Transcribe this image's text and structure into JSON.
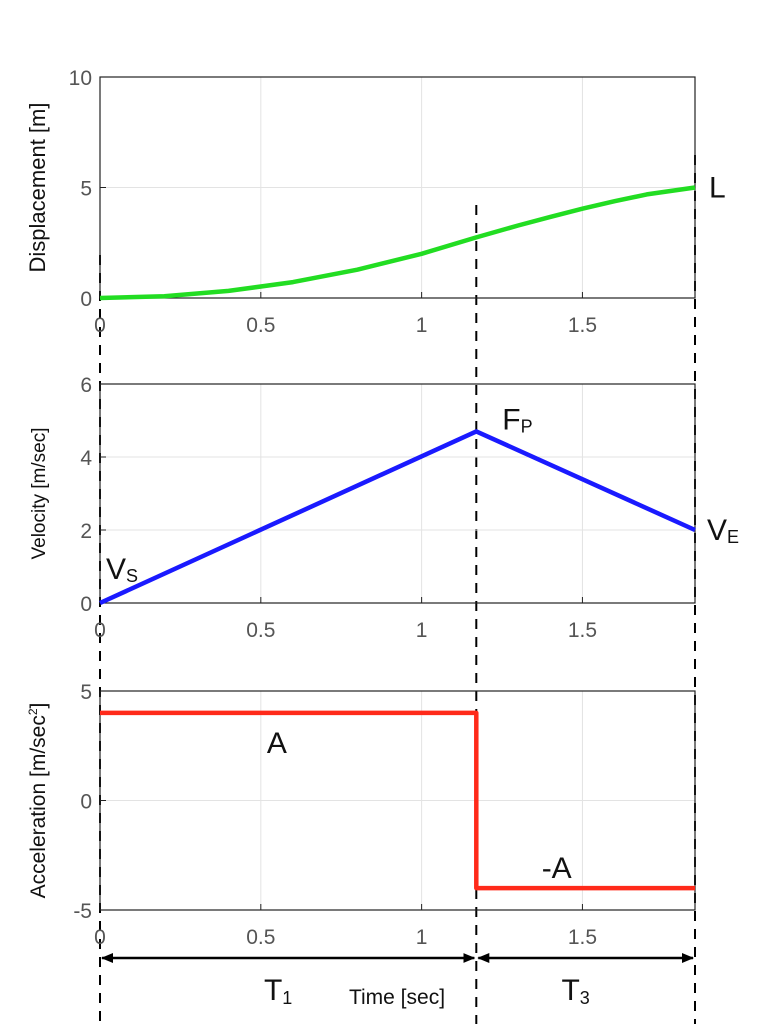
{
  "colors": {
    "displacement": "#22dd22",
    "velocity": "#1a1aff",
    "acceleration": "#ff2a1a",
    "grid": "#e3e3e3",
    "axis": "#222222"
  },
  "chart_data": [
    {
      "type": "line",
      "id": "displacement",
      "ylabel": "Displacement [m]",
      "xlim": [
        0,
        1.85
      ],
      "ylim": [
        0,
        10
      ],
      "x_ticks": [
        "0",
        "0.5",
        "1",
        "1.5"
      ],
      "x_tick_values": [
        0,
        0.5,
        1,
        1.5
      ],
      "y_ticks": [
        "0",
        "5",
        "10"
      ],
      "y_tick_values": [
        0,
        5,
        10
      ],
      "series": [
        {
          "name": "displacement",
          "x": [
            0,
            0.2,
            0.4,
            0.6,
            0.8,
            1.0,
            1.17,
            1.3,
            1.4,
            1.5,
            1.6,
            1.7,
            1.85
          ],
          "values": [
            0,
            0.08,
            0.32,
            0.72,
            1.28,
            2.0,
            2.74,
            3.28,
            3.67,
            4.04,
            4.38,
            4.69,
            5.0
          ]
        }
      ],
      "annotations": [
        {
          "text": "L",
          "x": 1.85,
          "y": 5.0
        }
      ]
    },
    {
      "type": "line",
      "id": "velocity",
      "ylabel": "Velocity [m/sec]",
      "xlim": [
        0,
        1.85
      ],
      "ylim": [
        0,
        6
      ],
      "x_ticks": [
        "0",
        "0.5",
        "1",
        "1.5"
      ],
      "x_tick_values": [
        0,
        0.5,
        1,
        1.5
      ],
      "y_ticks": [
        "0",
        "2",
        "4",
        "6"
      ],
      "y_tick_values": [
        0,
        2,
        4,
        6
      ],
      "series": [
        {
          "name": "velocity",
          "x": [
            0,
            1.17,
            1.85
          ],
          "values": [
            0,
            4.7,
            2.0
          ]
        }
      ],
      "annotations": [
        {
          "text": "V",
          "sub": "S",
          "x": 0,
          "y": 0
        },
        {
          "text": "F",
          "sub": "P",
          "x": 1.17,
          "y": 4.7
        },
        {
          "text": "V",
          "sub": "E",
          "x": 1.85,
          "y": 2.0
        }
      ]
    },
    {
      "type": "line",
      "id": "acceleration",
      "ylabel": "Acceleration [m/sec",
      "ylabel_sup": "2",
      "ylabel_end": "]",
      "xlabel": "Time [sec]",
      "xlim": [
        0,
        1.85
      ],
      "ylim": [
        -5,
        5
      ],
      "x_ticks": [
        "0",
        "0.5",
        "1",
        "1.5"
      ],
      "x_tick_values": [
        0,
        0.5,
        1,
        1.5
      ],
      "y_ticks": [
        "-5",
        "0",
        "5"
      ],
      "y_tick_values": [
        -5,
        0,
        5
      ],
      "series": [
        {
          "name": "acceleration",
          "x": [
            0,
            1.17,
            1.17,
            1.85
          ],
          "values": [
            4,
            4,
            -4,
            -4
          ]
        }
      ],
      "annotations": [
        {
          "text": "A",
          "x": 0.55,
          "y": 4
        },
        {
          "text": "-A",
          "x": 1.42,
          "y": -4
        }
      ]
    }
  ],
  "phase_markers": {
    "times": [
      0,
      1.17,
      1.85
    ],
    "intervals": [
      {
        "label": "T",
        "sub": "1",
        "from": 0,
        "to": 1.17
      },
      {
        "label": "T",
        "sub": "3",
        "from": 1.17,
        "to": 1.85
      }
    ]
  }
}
